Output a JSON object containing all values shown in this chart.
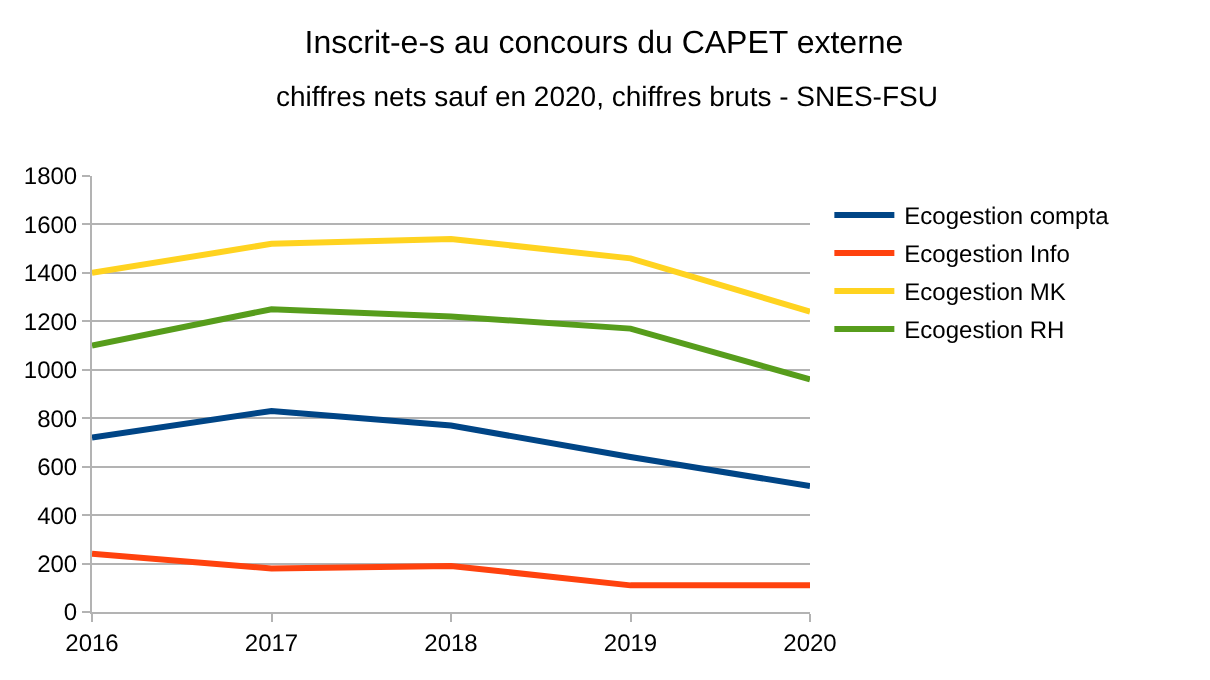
{
  "chart_data": {
    "type": "line",
    "title": "Inscrit-e-s au concours du CAPET externe",
    "subtitle": "chiffres nets sauf en 2020, chiffres bruts - SNES-FSU",
    "x": [
      2016,
      2017,
      2018,
      2019,
      2020
    ],
    "xlim": [
      2016,
      2020
    ],
    "xticks": [
      2016,
      2017,
      2018,
      2019,
      2020
    ],
    "ylim": [
      0,
      1800
    ],
    "yticks": [
      0,
      200,
      400,
      600,
      800,
      1000,
      1200,
      1400,
      1600,
      1800
    ],
    "series": [
      {
        "name": "Ecogestion compta",
        "color": "#004586",
        "values": [
          720,
          830,
          770,
          640,
          520
        ]
      },
      {
        "name": "Ecogestion Info",
        "color": "#ff420e",
        "values": [
          240,
          180,
          190,
          110,
          110
        ]
      },
      {
        "name": "Ecogestion MK",
        "color": "#ffd320",
        "values": [
          1400,
          1520,
          1540,
          1460,
          1240
        ]
      },
      {
        "name": "Ecogestion RH",
        "color": "#579d1c",
        "values": [
          1100,
          1250,
          1220,
          1170,
          960
        ]
      }
    ],
    "grid": "y",
    "legend": "right",
    "marker": "none",
    "line_style": "solid"
  }
}
